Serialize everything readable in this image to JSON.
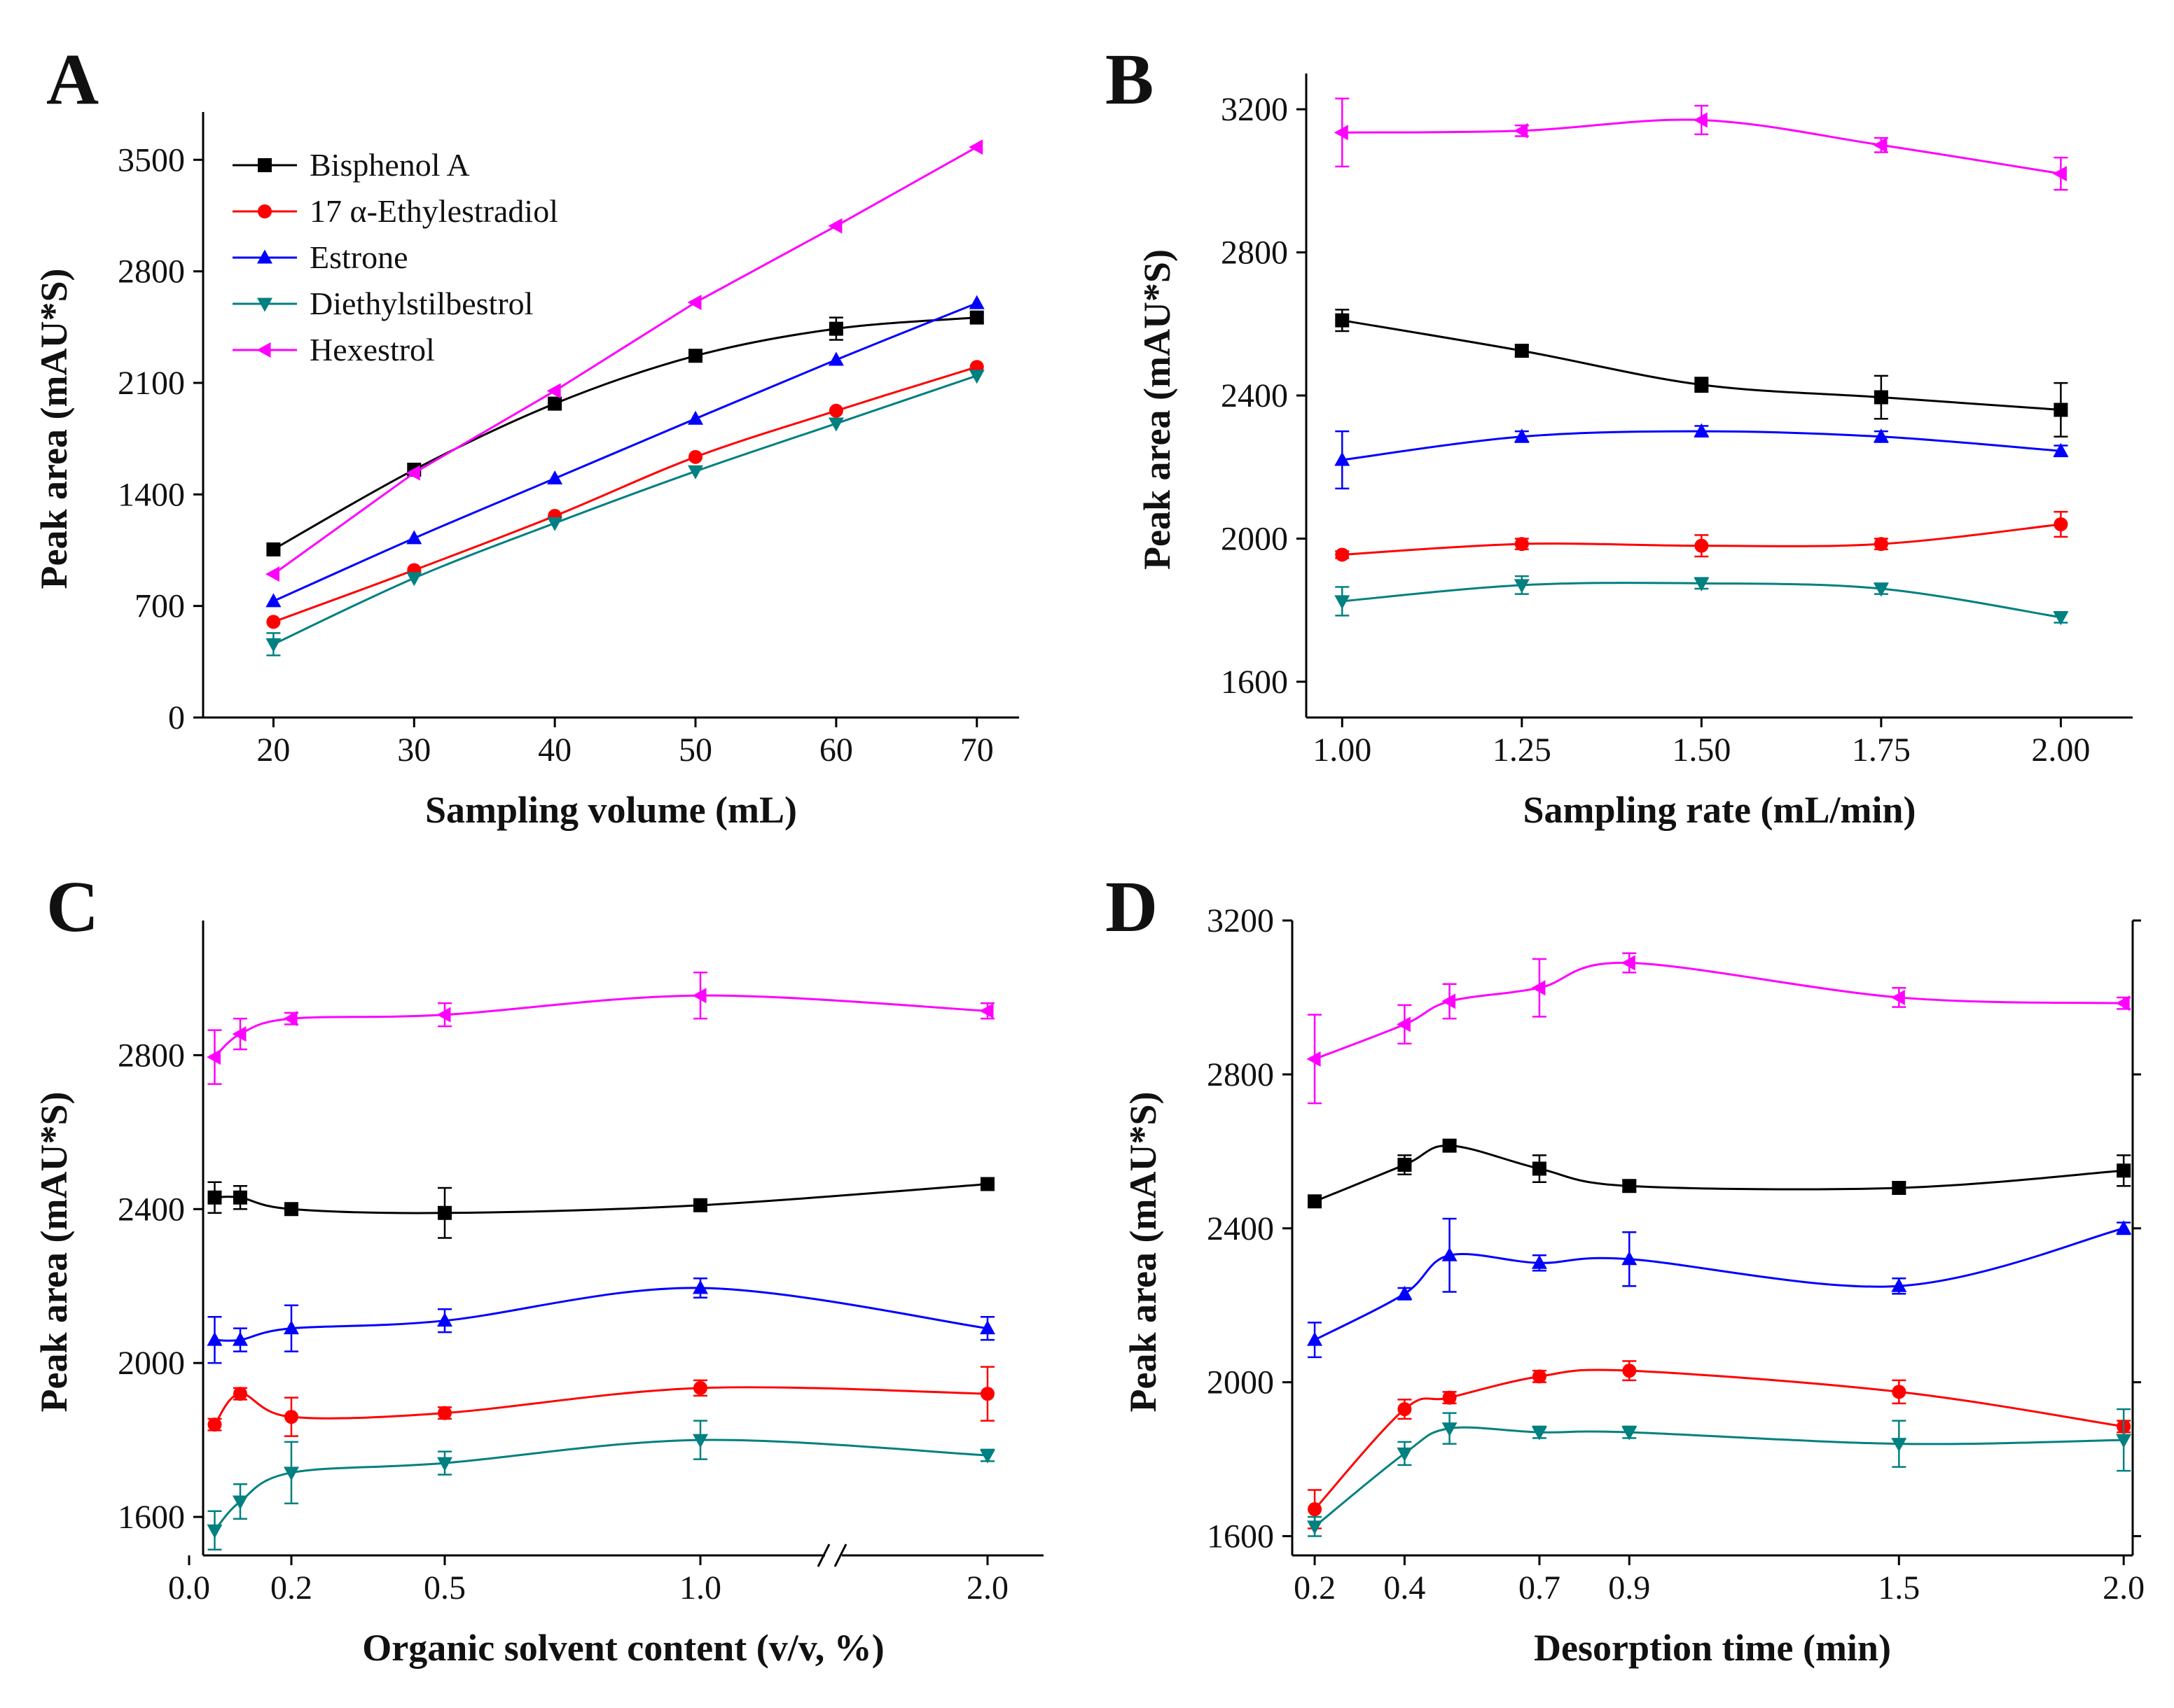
{
  "colors": {
    "Bisphenol A": "#000000",
    "17 α-Ethylestradiol": "#ff0000",
    "Estrone": "#0000ff",
    "Diethylstilbestrol": "#008080",
    "Hexestrol": "#ff00ff"
  },
  "markers": {
    "Bisphenol A": "square",
    "17 α-Ethylestradiol": "circle",
    "Estrone": "triangle-up",
    "Diethylstilbestrol": "triangle-down",
    "Hexestrol": "triangle-left"
  },
  "legend": {
    "position": "top-left",
    "entries": [
      "Bisphenol A",
      "17 α-Ethylestradiol",
      "Estrone",
      "Diethylstilbestrol",
      "Hexestrol"
    ]
  },
  "chart_data": [
    {
      "panel": "A",
      "type": "line",
      "xlabel": "Sampling volume (mL)",
      "ylabel": "Peak area (mAU*S)",
      "xlim": [
        15,
        73
      ],
      "ylim": [
        0,
        3800
      ],
      "xticks": [
        20,
        30,
        40,
        50,
        60,
        70
      ],
      "xtick_labels": [
        "20",
        "30",
        "40",
        "50",
        "60",
        "70"
      ],
      "yticks": [
        0,
        700,
        1400,
        2100,
        2800,
        3500
      ],
      "ytick_labels": [
        "0",
        "700",
        "1400",
        "2100",
        "2800",
        "3500"
      ],
      "x": [
        20,
        30,
        40,
        50,
        60,
        70
      ],
      "series": [
        {
          "name": "Bisphenol A",
          "values": [
            1055,
            1555,
            1970,
            2270,
            2440,
            2510
          ],
          "errors": [
            0,
            0,
            0,
            20,
            70,
            30
          ]
        },
        {
          "name": "17 α-Ethylestradiol",
          "values": [
            600,
            925,
            1265,
            1635,
            1925,
            2200
          ],
          "errors": [
            0,
            0,
            0,
            0,
            0,
            0
          ]
        },
        {
          "name": "Estrone",
          "values": [
            730,
            1125,
            1500,
            1875,
            2245,
            2600
          ],
          "errors": [
            0,
            0,
            0,
            0,
            0,
            0
          ]
        },
        {
          "name": "Diethylstilbestrol",
          "values": [
            460,
            875,
            1220,
            1545,
            1845,
            2145
          ],
          "errors": [
            70,
            0,
            0,
            0,
            0,
            0
          ]
        },
        {
          "name": "Hexestrol",
          "values": [
            900,
            1535,
            2050,
            2605,
            3085,
            3580
          ],
          "errors": [
            0,
            0,
            0,
            0,
            0,
            0
          ]
        }
      ]
    },
    {
      "panel": "B",
      "type": "line",
      "xlabel": "Sampling rate (mL/min)",
      "ylabel": "Peak area (mAU*S)",
      "xlim": [
        0.95,
        2.1
      ],
      "ylim": [
        1500,
        3300
      ],
      "xticks": [
        1.0,
        1.25,
        1.5,
        1.75,
        2.0
      ],
      "xtick_labels": [
        "1.00",
        "1.25",
        "1.50",
        "1.75",
        "2.00"
      ],
      "yticks": [
        1600,
        2000,
        2400,
        2800,
        3200
      ],
      "ytick_labels": [
        "1600",
        "2000",
        "2400",
        "2800",
        "3200"
      ],
      "x": [
        1.0,
        1.25,
        1.5,
        1.75,
        2.0
      ],
      "series": [
        {
          "name": "Bisphenol A",
          "values": [
            2610,
            2525,
            2430,
            2395,
            2360
          ],
          "errors": [
            30,
            15,
            20,
            60,
            75
          ]
        },
        {
          "name": "17 α-Ethylestradiol",
          "values": [
            1955,
            1985,
            1980,
            1985,
            2040
          ],
          "errors": [
            10,
            15,
            30,
            15,
            35
          ]
        },
        {
          "name": "Estrone",
          "values": [
            2220,
            2285,
            2300,
            2285,
            2245
          ],
          "errors": [
            80,
            15,
            15,
            15,
            15
          ]
        },
        {
          "name": "Diethylstilbestrol",
          "values": [
            1825,
            1870,
            1875,
            1860,
            1780
          ],
          "errors": [
            40,
            25,
            15,
            15,
            15
          ]
        },
        {
          "name": "Hexestrol",
          "values": [
            3135,
            3140,
            3170,
            3100,
            3020
          ],
          "errors": [
            95,
            15,
            40,
            20,
            45
          ]
        }
      ]
    },
    {
      "panel": "C",
      "type": "line",
      "xlabel": "Organic solvent content (v/v, %)",
      "ylabel": "Peak area (mAU*S)",
      "axis_break": "between 1.0 and 2.0",
      "xlim": [
        0.0,
        2.1
      ],
      "ylim": [
        1500,
        3150
      ],
      "xticks": [
        0.0,
        0.2,
        0.5,
        1.0,
        2.0
      ],
      "xtick_labels": [
        "0.0",
        "0.2",
        "0.5",
        "1.0",
        "2.0"
      ],
      "yticks": [
        1600,
        2000,
        2400,
        2800
      ],
      "ytick_labels": [
        "1600",
        "2000",
        "2400",
        "2800"
      ],
      "x": [
        0.05,
        0.1,
        0.2,
        0.5,
        1.0,
        2.0
      ],
      "series": [
        {
          "name": "Bisphenol A",
          "values": [
            2430,
            2430,
            2400,
            2390,
            2410,
            2465
          ],
          "errors": [
            40,
            30,
            15,
            65,
            15,
            15
          ]
        },
        {
          "name": "17 α-Ethylestradiol",
          "values": [
            1840,
            1920,
            1860,
            1870,
            1935,
            1920
          ],
          "errors": [
            15,
            15,
            50,
            15,
            20,
            70
          ]
        },
        {
          "name": "Estrone",
          "values": [
            2060,
            2060,
            2090,
            2110,
            2195,
            2090
          ],
          "errors": [
            60,
            30,
            60,
            30,
            25,
            30
          ]
        },
        {
          "name": "Diethylstilbestrol",
          "values": [
            1565,
            1640,
            1715,
            1740,
            1800,
            1760
          ],
          "errors": [
            50,
            45,
            80,
            30,
            50,
            15
          ]
        },
        {
          "name": "Hexestrol",
          "values": [
            2795,
            2855,
            2895,
            2905,
            2955,
            2915
          ],
          "errors": [
            70,
            40,
            15,
            30,
            60,
            20
          ]
        }
      ]
    },
    {
      "panel": "D",
      "type": "line",
      "xlabel": "Desorption time (min)",
      "ylabel": "Peak area (mAU*S)",
      "xlim": [
        0.15,
        2.02
      ],
      "ylim": [
        1550,
        3200
      ],
      "xticks": [
        0.2,
        0.4,
        0.7,
        0.9,
        1.5,
        2.0
      ],
      "xtick_labels": [
        "0.2",
        "0.4",
        "0.7",
        "0.9",
        "1.5",
        "2.0"
      ],
      "yticks": [
        1600,
        2000,
        2400,
        2800,
        3200
      ],
      "ytick_labels": [
        "1600",
        "2000",
        "2400",
        "2800",
        "3200"
      ],
      "x": [
        0.2,
        0.4,
        0.5,
        0.7,
        0.9,
        1.5,
        2.0
      ],
      "series": [
        {
          "name": "Bisphenol A",
          "values": [
            2470,
            2565,
            2615,
            2555,
            2510,
            2505,
            2550
          ],
          "errors": [
            15,
            25,
            15,
            35,
            15,
            15,
            40
          ]
        },
        {
          "name": "17 α-Ethylestradiol",
          "values": [
            1670,
            1930,
            1960,
            2015,
            2030,
            1975,
            1885
          ],
          "errors": [
            50,
            25,
            15,
            15,
            25,
            30,
            15
          ]
        },
        {
          "name": "Estrone",
          "values": [
            2110,
            2230,
            2330,
            2310,
            2320,
            2250,
            2400
          ],
          "errors": [
            45,
            15,
            95,
            20,
            70,
            20,
            15
          ]
        },
        {
          "name": "Diethylstilbestrol",
          "values": [
            1625,
            1815,
            1880,
            1870,
            1870,
            1840,
            1850
          ],
          "errors": [
            25,
            30,
            40,
            15,
            15,
            60,
            80
          ]
        },
        {
          "name": "Hexestrol",
          "values": [
            2840,
            2930,
            2990,
            3025,
            3090,
            3000,
            2985
          ],
          "errors": [
            115,
            50,
            45,
            75,
            25,
            25,
            15
          ]
        }
      ]
    }
  ]
}
